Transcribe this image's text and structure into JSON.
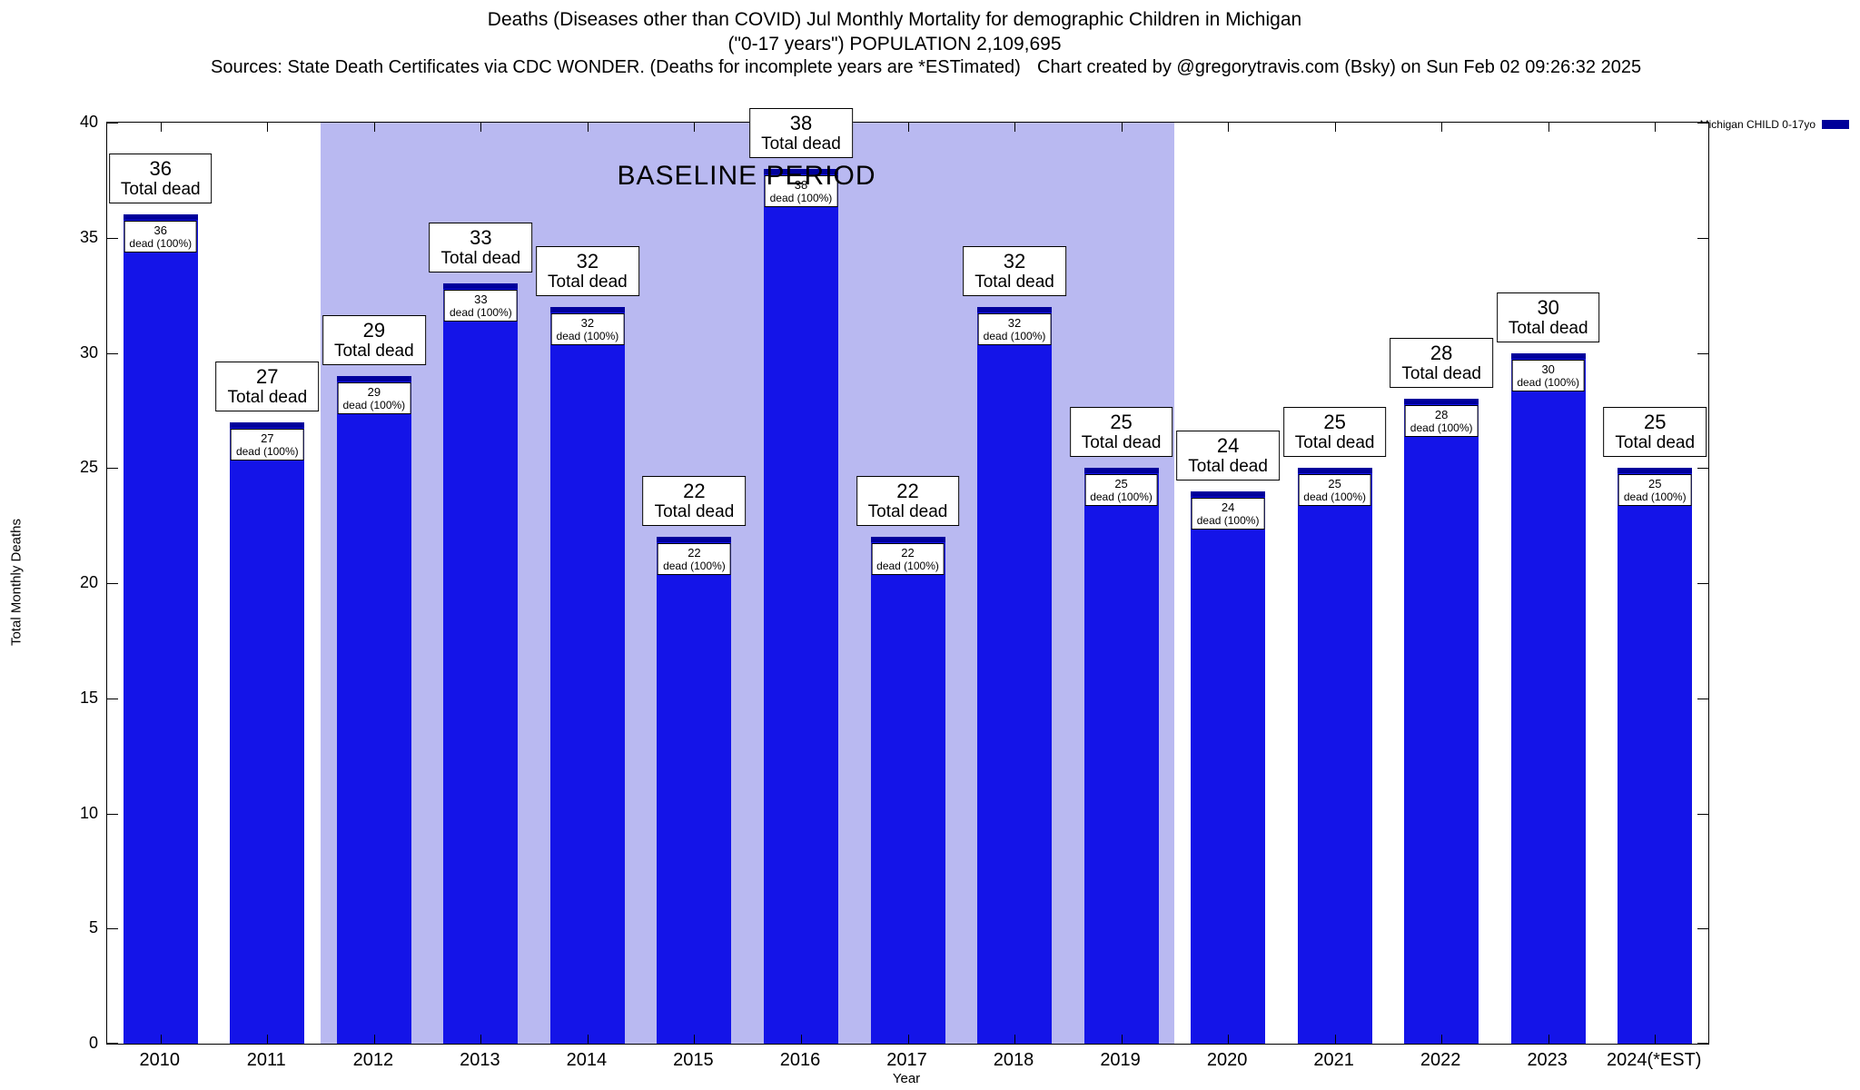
{
  "header": {
    "title_line1": "Deaths (Diseases other than COVID) Jul Monthly Mortality for demographic Children in Michigan",
    "title_line2": "(\"0-17 years\") POPULATION 2,109,695",
    "sources": "Sources: State Death Certificates via CDC WONDER. (Deaths for incomplete years are *ESTimated)",
    "credit": "Chart created by @gregorytravis.com (Bsky) on Sun Feb 02 09:26:32 2025"
  },
  "legend": {
    "label": "Michigan CHILD 0-17yo",
    "swatch_color": "#000099"
  },
  "chart_data": {
    "type": "bar",
    "title": "Deaths (Diseases other than COVID) Jul Monthly Mortality for demographic Children in Michigan (\"0-17 years\") POPULATION 2,109,695",
    "xlabel": "Year",
    "ylabel": "Total Monthly Deaths",
    "ylim": [
      0,
      40
    ],
    "yticks": [
      0,
      5,
      10,
      15,
      20,
      25,
      30,
      35,
      40
    ],
    "categories": [
      "2010",
      "2011",
      "2012",
      "2013",
      "2014",
      "2015",
      "2016",
      "2017",
      "2018",
      "2019",
      "2020",
      "2021",
      "2022",
      "2023",
      "2024(*EST)"
    ],
    "values": [
      36,
      27,
      29,
      33,
      32,
      22,
      38,
      22,
      32,
      25,
      24,
      25,
      28,
      30,
      25
    ],
    "labels": {
      "total": "Total dead",
      "inner": "dead (100%)"
    },
    "bar_color": "#1414e8",
    "bar_cap_color": "#00009c",
    "baseline": {
      "label": "BASELINE PERIOD",
      "start_category": "2012",
      "end_category": "2019",
      "color": "#b9b9f1"
    },
    "grid": false,
    "legend_position": "top-right"
  }
}
